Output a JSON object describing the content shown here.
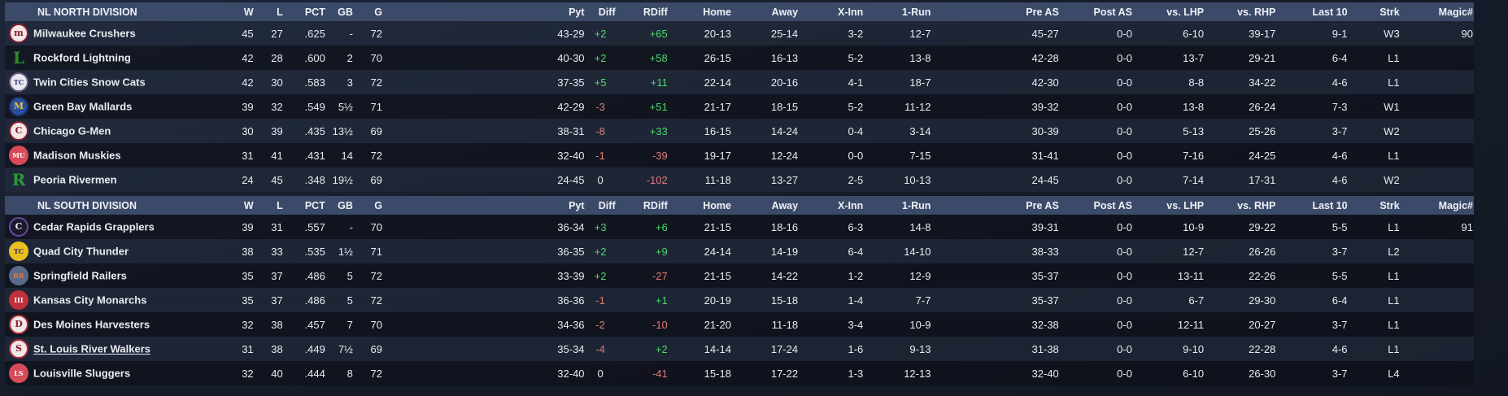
{
  "columns": [
    "W",
    "L",
    "PCT",
    "GB",
    "G",
    "Pyt",
    "Diff",
    "RDiff",
    "Home",
    "Away",
    "X-Inn",
    "1-Run",
    "Pre AS",
    "Post AS",
    "vs. LHP",
    "vs. RHP",
    "Last 10",
    "Strk",
    "Magic#"
  ],
  "colors": {
    "positive": "#4fd86a",
    "negative": "#e07a78",
    "header": "#3b4a68"
  },
  "divisions": [
    {
      "title": "NL NORTH DIVISION",
      "teams": [
        {
          "name": "Milwaukee Crushers",
          "logo": {
            "text": "m",
            "bg": "#f2e6e6",
            "fg": "#8a1c2c",
            "border": "#8a1c2c"
          },
          "W": "45",
          "L": "27",
          "PCT": ".625",
          "GB": "-",
          "G": "72",
          "Pyt": "43-29",
          "Diff": "+2",
          "RDiff": "+65",
          "Home": "20-13",
          "Away": "25-14",
          "XInn": "3-2",
          "OneRun": "12-7",
          "PreAS": "45-27",
          "PostAS": "0-0",
          "vsLHP": "6-10",
          "vsRHP": "39-17",
          "Last10": "9-1",
          "Strk": "W3",
          "Magic": "90"
        },
        {
          "name": "Rockford Lightning",
          "logo": {
            "text": "L",
            "bg": "transparent",
            "fg": "#2f8a2a",
            "border": "transparent"
          },
          "W": "42",
          "L": "28",
          "PCT": ".600",
          "GB": "2",
          "G": "70",
          "Pyt": "40-30",
          "Diff": "+2",
          "RDiff": "+58",
          "Home": "26-15",
          "Away": "16-13",
          "XInn": "5-2",
          "OneRun": "13-8",
          "PreAS": "42-28",
          "PostAS": "0-0",
          "vsLHP": "13-7",
          "vsRHP": "29-21",
          "Last10": "6-4",
          "Strk": "L1",
          "Magic": ""
        },
        {
          "name": "Twin Cities Snow Cats",
          "logo": {
            "text": "TC",
            "bg": "#e8e8f0",
            "fg": "#3a3a6a",
            "border": "#6a5a7a"
          },
          "W": "42",
          "L": "30",
          "PCT": ".583",
          "GB": "3",
          "G": "72",
          "Pyt": "37-35",
          "Diff": "+5",
          "RDiff": "+11",
          "Home": "22-14",
          "Away": "20-16",
          "XInn": "4-1",
          "OneRun": "18-7",
          "PreAS": "42-30",
          "PostAS": "0-0",
          "vsLHP": "8-8",
          "vsRHP": "34-22",
          "Last10": "4-6",
          "Strk": "L1",
          "Magic": ""
        },
        {
          "name": "Green Bay  Mallards",
          "logo": {
            "text": "M",
            "bg": "#2a4fa0",
            "fg": "#f2c230",
            "border": "#1c3470"
          },
          "W": "39",
          "L": "32",
          "PCT": ".549",
          "GB": "5½",
          "G": "71",
          "Pyt": "42-29",
          "Diff": "-3",
          "RDiff": "+51",
          "Home": "21-17",
          "Away": "18-15",
          "XInn": "5-2",
          "OneRun": "11-12",
          "PreAS": "39-32",
          "PostAS": "0-0",
          "vsLHP": "13-8",
          "vsRHP": "26-24",
          "Last10": "7-3",
          "Strk": "W1",
          "Magic": ""
        },
        {
          "name": "Chicago G-Men",
          "logo": {
            "text": "C",
            "bg": "#f2e6e6",
            "fg": "#8a1c2c",
            "border": "#8a1c2c"
          },
          "W": "30",
          "L": "39",
          "PCT": ".435",
          "GB": "13½",
          "G": "69",
          "Pyt": "38-31",
          "Diff": "-8",
          "RDiff": "+33",
          "Home": "16-15",
          "Away": "14-24",
          "XInn": "0-4",
          "OneRun": "3-14",
          "PreAS": "30-39",
          "PostAS": "0-0",
          "vsLHP": "5-13",
          "vsRHP": "25-26",
          "Last10": "3-7",
          "Strk": "W2",
          "Magic": ""
        },
        {
          "name": "Madison Muskies",
          "logo": {
            "text": "MU",
            "bg": "#d84a5a",
            "fg": "#ffffff",
            "border": "#d84a5a"
          },
          "W": "31",
          "L": "41",
          "PCT": ".431",
          "GB": "14",
          "G": "72",
          "Pyt": "32-40",
          "Diff": "-1",
          "RDiff": "-39",
          "Home": "19-17",
          "Away": "12-24",
          "XInn": "0-0",
          "OneRun": "7-15",
          "PreAS": "31-41",
          "PostAS": "0-0",
          "vsLHP": "7-16",
          "vsRHP": "24-25",
          "Last10": "4-6",
          "Strk": "L1",
          "Magic": ""
        },
        {
          "name": "Peoria Rivermen",
          "logo": {
            "text": "R",
            "bg": "transparent",
            "fg": "#2a9a3a",
            "border": "transparent"
          },
          "W": "24",
          "L": "45",
          "PCT": ".348",
          "GB": "19½",
          "G": "69",
          "Pyt": "24-45",
          "Diff": "0",
          "RDiff": "-102",
          "Home": "11-18",
          "Away": "13-27",
          "XInn": "2-5",
          "OneRun": "10-13",
          "PreAS": "24-45",
          "PostAS": "0-0",
          "vsLHP": "7-14",
          "vsRHP": "17-31",
          "Last10": "4-6",
          "Strk": "W2",
          "Magic": ""
        }
      ]
    },
    {
      "title": "NL SOUTH DIVISION",
      "teams": [
        {
          "name": "Cedar Rapids Grapplers",
          "logo": {
            "text": "C",
            "bg": "#1a1a2a",
            "fg": "#e8e8f0",
            "border": "#6a4aa0"
          },
          "W": "39",
          "L": "31",
          "PCT": ".557",
          "GB": "-",
          "G": "70",
          "Pyt": "36-34",
          "Diff": "+3",
          "RDiff": "+6",
          "Home": "21-15",
          "Away": "18-16",
          "XInn": "6-3",
          "OneRun": "14-8",
          "PreAS": "39-31",
          "PostAS": "0-0",
          "vsLHP": "10-9",
          "vsRHP": "29-22",
          "Last10": "5-5",
          "Strk": "L1",
          "Magic": "91"
        },
        {
          "name": "Quad City Thunder",
          "logo": {
            "text": "TC",
            "bg": "#e8c020",
            "fg": "#3a2a6a",
            "border": "#e8c020"
          },
          "W": "38",
          "L": "33",
          "PCT": ".535",
          "GB": "1½",
          "G": "71",
          "Pyt": "36-35",
          "Diff": "+2",
          "RDiff": "+9",
          "Home": "24-14",
          "Away": "14-19",
          "XInn": "6-4",
          "OneRun": "14-10",
          "PreAS": "38-33",
          "PostAS": "0-0",
          "vsLHP": "12-7",
          "vsRHP": "26-26",
          "Last10": "3-7",
          "Strk": "L2",
          "Magic": ""
        },
        {
          "name": "Springfield Railers",
          "logo": {
            "text": "RR",
            "bg": "#5a6a8a",
            "fg": "#e07a40",
            "border": "#5a6a8a"
          },
          "W": "35",
          "L": "37",
          "PCT": ".486",
          "GB": "5",
          "G": "72",
          "Pyt": "33-39",
          "Diff": "+2",
          "RDiff": "-27",
          "Home": "21-15",
          "Away": "14-22",
          "XInn": "1-2",
          "OneRun": "12-9",
          "PreAS": "35-37",
          "PostAS": "0-0",
          "vsLHP": "13-11",
          "vsRHP": "22-26",
          "Last10": "5-5",
          "Strk": "L1",
          "Magic": ""
        },
        {
          "name": "Kansas City Monarchs",
          "logo": {
            "text": "III",
            "bg": "#c0303a",
            "fg": "#ffffff",
            "border": "#c0303a"
          },
          "W": "35",
          "L": "37",
          "PCT": ".486",
          "GB": "5",
          "G": "72",
          "Pyt": "36-36",
          "Diff": "-1",
          "RDiff": "+1",
          "Home": "20-19",
          "Away": "15-18",
          "XInn": "1-4",
          "OneRun": "7-7",
          "PreAS": "35-37",
          "PostAS": "0-0",
          "vsLHP": "6-7",
          "vsRHP": "29-30",
          "Last10": "6-4",
          "Strk": "L1",
          "Magic": ""
        },
        {
          "name": "Des Moines Harvesters",
          "logo": {
            "text": "D",
            "bg": "#f0e8e8",
            "fg": "#8a1c2c",
            "border": "#b02a3a"
          },
          "W": "32",
          "L": "38",
          "PCT": ".457",
          "GB": "7",
          "G": "70",
          "Pyt": "34-36",
          "Diff": "-2",
          "RDiff": "-10",
          "Home": "21-20",
          "Away": "11-18",
          "XInn": "3-4",
          "OneRun": "10-9",
          "PreAS": "32-38",
          "PostAS": "0-0",
          "vsLHP": "12-11",
          "vsRHP": "20-27",
          "Last10": "3-7",
          "Strk": "L1",
          "Magic": ""
        },
        {
          "name": "St. Louis River Walkers",
          "logo": {
            "text": "S",
            "bg": "#f0e8e8",
            "fg": "#8a1c2c",
            "border": "#b02a3a"
          },
          "W": "31",
          "L": "38",
          "PCT": ".449",
          "GB": "7½",
          "G": "69",
          "Pyt": "35-34",
          "Diff": "-4",
          "RDiff": "+2",
          "Home": "14-14",
          "Away": "17-24",
          "XInn": "1-6",
          "OneRun": "9-13",
          "PreAS": "31-38",
          "PostAS": "0-0",
          "vsLHP": "9-10",
          "vsRHP": "22-28",
          "Last10": "4-6",
          "Strk": "L1",
          "Magic": "",
          "link": true
        },
        {
          "name": "Louisville Sluggers",
          "logo": {
            "text": "LS",
            "bg": "#d84a5a",
            "fg": "#ffffff",
            "border": "#d84a5a"
          },
          "W": "32",
          "L": "40",
          "PCT": ".444",
          "GB": "8",
          "G": "72",
          "Pyt": "32-40",
          "Diff": "0",
          "RDiff": "-41",
          "Home": "15-18",
          "Away": "17-22",
          "XInn": "1-3",
          "OneRun": "12-13",
          "PreAS": "32-40",
          "PostAS": "0-0",
          "vsLHP": "6-10",
          "vsRHP": "26-30",
          "Last10": "3-7",
          "Strk": "L4",
          "Magic": ""
        }
      ]
    }
  ]
}
